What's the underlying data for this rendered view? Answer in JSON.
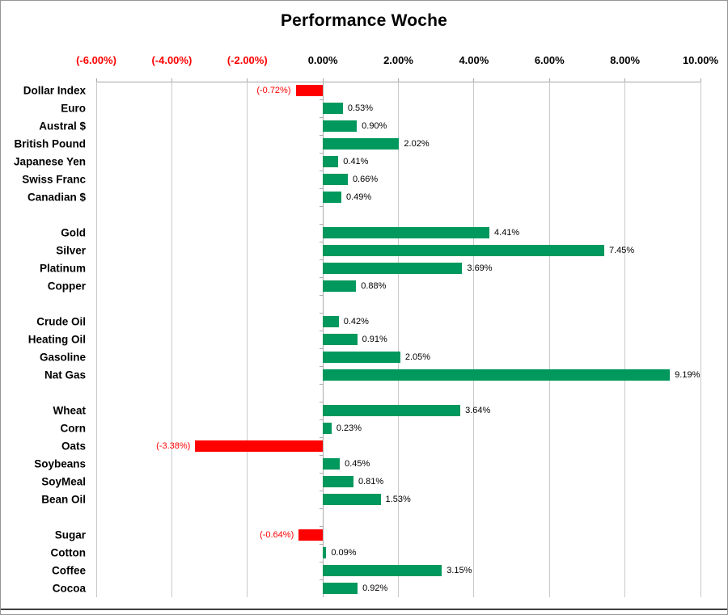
{
  "window": {
    "background": "#FFFFFF",
    "border_color": "#969696"
  },
  "chart_data": {
    "type": "bar",
    "orientation": "horizontal",
    "title": "Performance Woche",
    "xlabel": "",
    "ylabel": "",
    "grid": true,
    "legend": false,
    "axis": {
      "min": -6,
      "max": 10,
      "tick_values": [
        -6,
        -4,
        -2,
        0,
        2,
        4,
        6,
        8,
        10
      ],
      "tick_labels": [
        "(-6.00%)",
        "(-4.00%)",
        "(-2.00%)",
        "0.00%",
        "2.00%",
        "4.00%",
        "6.00%",
        "8.00%",
        "10.00%"
      ]
    },
    "colors": {
      "positive_bar": "#00985C",
      "negative_bar": "#FF0000",
      "negative_text": "#FF0000",
      "positive_text": "#000000",
      "gridline": "#C9C9C9",
      "axis_line": "#A6A6A6"
    },
    "groups": [
      {
        "items": [
          {
            "label": "Dollar Index",
            "value": -0.72,
            "value_label": "(-0.72%)"
          },
          {
            "label": "Euro",
            "value": 0.53,
            "value_label": "0.53%"
          },
          {
            "label": "Austral $",
            "value": 0.9,
            "value_label": "0.90%"
          },
          {
            "label": "British Pound",
            "value": 2.02,
            "value_label": "2.02%"
          },
          {
            "label": "Japanese Yen",
            "value": 0.41,
            "value_label": "0.41%"
          },
          {
            "label": "Swiss Franc",
            "value": 0.66,
            "value_label": "0.66%"
          },
          {
            "label": "Canadian $",
            "value": 0.49,
            "value_label": "0.49%"
          }
        ]
      },
      {
        "items": [
          {
            "label": "Gold",
            "value": 4.41,
            "value_label": "4.41%"
          },
          {
            "label": "Silver",
            "value": 7.45,
            "value_label": "7.45%"
          },
          {
            "label": "Platinum",
            "value": 3.69,
            "value_label": "3.69%"
          },
          {
            "label": "Copper",
            "value": 0.88,
            "value_label": "0.88%"
          }
        ]
      },
      {
        "items": [
          {
            "label": "Crude Oil",
            "value": 0.42,
            "value_label": "0.42%"
          },
          {
            "label": "Heating Oil",
            "value": 0.91,
            "value_label": "0.91%"
          },
          {
            "label": "Gasoline",
            "value": 2.05,
            "value_label": "2.05%"
          },
          {
            "label": "Nat Gas",
            "value": 9.19,
            "value_label": "9.19%"
          }
        ]
      },
      {
        "items": [
          {
            "label": "Wheat",
            "value": 3.64,
            "value_label": "3.64%"
          },
          {
            "label": "Corn",
            "value": 0.23,
            "value_label": "0.23%"
          },
          {
            "label": "Oats",
            "value": -3.38,
            "value_label": "(-3.38%)"
          },
          {
            "label": "Soybeans",
            "value": 0.45,
            "value_label": "0.45%"
          },
          {
            "label": "SoyMeal",
            "value": 0.81,
            "value_label": "0.81%"
          },
          {
            "label": "Bean Oil",
            "value": 1.53,
            "value_label": "1.53%"
          }
        ]
      },
      {
        "items": [
          {
            "label": "Sugar",
            "value": -0.64,
            "value_label": "(-0.64%)"
          },
          {
            "label": "Cotton",
            "value": 0.09,
            "value_label": "0.09%"
          },
          {
            "label": "Coffee",
            "value": 3.15,
            "value_label": "3.15%"
          },
          {
            "label": "Cocoa",
            "value": 0.92,
            "value_label": "0.92%"
          }
        ]
      }
    ]
  }
}
